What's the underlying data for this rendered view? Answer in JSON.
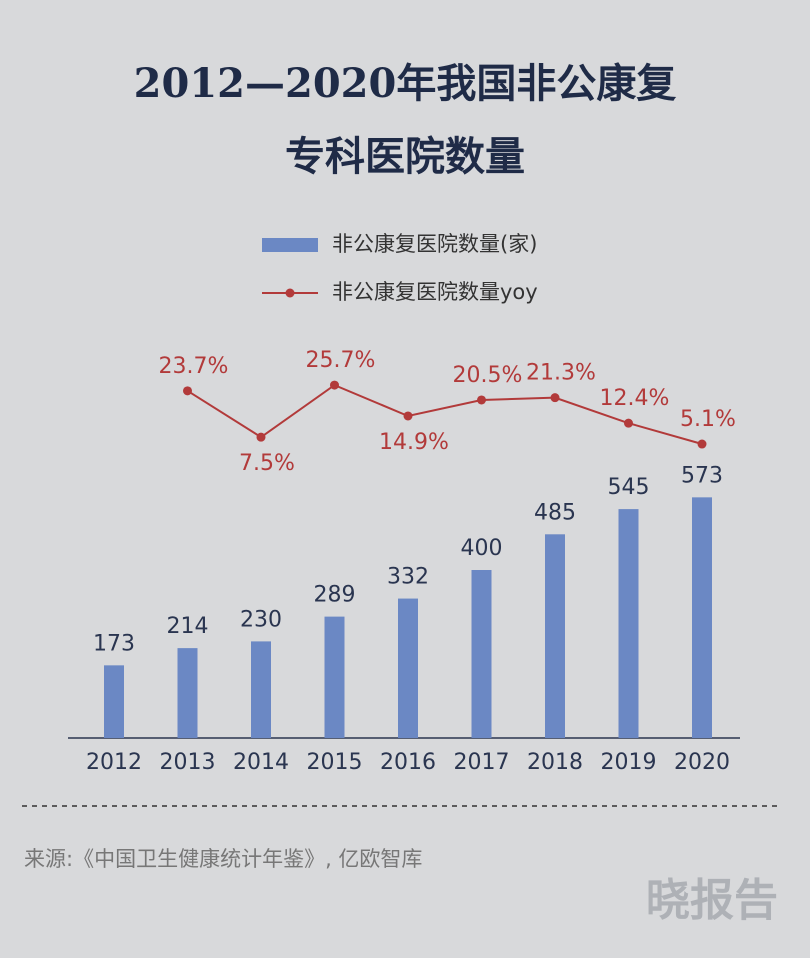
{
  "chart_data": {
    "type": "bar-line",
    "title": [
      "2012—2020年我国非公康复",
      "专科医院数量"
    ],
    "categories": [
      "2012",
      "2013",
      "2014",
      "2015",
      "2016",
      "2017",
      "2018",
      "2019",
      "2020"
    ],
    "series": [
      {
        "name": "非公康复医院数量(家)",
        "type": "bar",
        "color": "#6b88c4",
        "values": [
          173,
          214,
          230,
          289,
          332,
          400,
          485,
          545,
          573
        ]
      },
      {
        "name": "非公康复医院数量yoy",
        "type": "line",
        "axis": "y2",
        "color": "#b23a3a",
        "values": [
          null,
          23.7,
          7.5,
          25.7,
          14.9,
          20.5,
          21.3,
          12.4,
          5.1
        ],
        "value_labels": [
          null,
          "23.7%",
          "7.5%",
          "25.7%",
          "14.9%",
          "20.5%",
          "21.3%",
          "12.4%",
          "5.1%"
        ]
      }
    ],
    "ylim": [
      0,
      600
    ],
    "y2lim": [
      0,
      30
    ],
    "source": "来源:《中国卫生健康统计年鉴》, 亿欧智库",
    "watermark": "晓报告"
  }
}
